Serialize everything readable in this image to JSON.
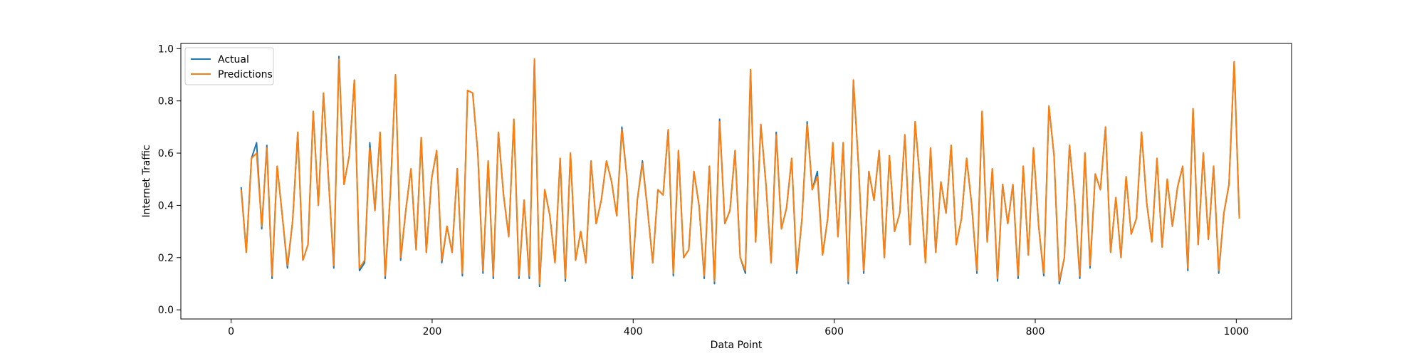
{
  "chart_data": {
    "type": "line",
    "title": "",
    "xlabel": "Data Point",
    "ylabel": "Internet Traffic",
    "xlim": [
      -50,
      1055
    ],
    "ylim": [
      -0.035,
      1.02
    ],
    "xticks": [
      0,
      200,
      400,
      600,
      800,
      1000
    ],
    "xtick_labels": [
      "0",
      "200",
      "400",
      "600",
      "800",
      "1000"
    ],
    "yticks": [
      0.0,
      0.2,
      0.4,
      0.6,
      0.8,
      1.0
    ],
    "ytick_labels": [
      "0.0",
      "0.2",
      "0.4",
      "0.6",
      "0.8",
      "1.0"
    ],
    "grid": false,
    "legend_position": "top-left",
    "x_range": [
      10,
      1003
    ],
    "note_series_values": "Dense series (~990 points); values sampled every 10 data points starting at x=10, estimated from the plot. Predictions track Actual nearly exactly.",
    "series": [
      {
        "name": "Actual",
        "color": "#1f77b4",
        "values": [
          0.47,
          0.22,
          0.58,
          0.64,
          0.31,
          0.63,
          0.12,
          0.55,
          0.36,
          0.16,
          0.34,
          0.68,
          0.19,
          0.25,
          0.76,
          0.4,
          0.83,
          0.49,
          0.16,
          0.97,
          0.48,
          0.59,
          0.88,
          0.15,
          0.18,
          0.64,
          0.38,
          0.68,
          0.12,
          0.45,
          0.9,
          0.19,
          0.38,
          0.54,
          0.23,
          0.66,
          0.22,
          0.5,
          0.61,
          0.18,
          0.32,
          0.22,
          0.54,
          0.13,
          0.84,
          0.83,
          0.6,
          0.14,
          0.57,
          0.12,
          0.68,
          0.44,
          0.28,
          0.73,
          0.12,
          0.42,
          0.12,
          0.96,
          0.09,
          0.46,
          0.36,
          0.18,
          0.58,
          0.11,
          0.6,
          0.19,
          0.3,
          0.18,
          0.57,
          0.33,
          0.42,
          0.57,
          0.49,
          0.36,
          0.7,
          0.5,
          0.12,
          0.42,
          0.57,
          0.38,
          0.18,
          0.46,
          0.44,
          0.69,
          0.13,
          0.61,
          0.2,
          0.23,
          0.53,
          0.4,
          0.12,
          0.55,
          0.1,
          0.73,
          0.33,
          0.38,
          0.61,
          0.2,
          0.14,
          0.92,
          0.26,
          0.71,
          0.48,
          0.18,
          0.68,
          0.31,
          0.39,
          0.58,
          0.14,
          0.35,
          0.72,
          0.46,
          0.53,
          0.21,
          0.35,
          0.64,
          0.28,
          0.64,
          0.1,
          0.88,
          0.55,
          0.14,
          0.53,
          0.42,
          0.61,
          0.2,
          0.59,
          0.3,
          0.37,
          0.67,
          0.25,
          0.72,
          0.48,
          0.18,
          0.62,
          0.22,
          0.49,
          0.37,
          0.63,
          0.25,
          0.35,
          0.58,
          0.4,
          0.14,
          0.76,
          0.26,
          0.54,
          0.11,
          0.48,
          0.33,
          0.48,
          0.12,
          0.55,
          0.21,
          0.62,
          0.32,
          0.13,
          0.78,
          0.59,
          0.1,
          0.2,
          0.63,
          0.42,
          0.12,
          0.6,
          0.16,
          0.52,
          0.46,
          0.7,
          0.22,
          0.43,
          0.2,
          0.51,
          0.29,
          0.35,
          0.68,
          0.41,
          0.26,
          0.58,
          0.24,
          0.5,
          0.32,
          0.47,
          0.55,
          0.15,
          0.77,
          0.25,
          0.6,
          0.27,
          0.55,
          0.14,
          0.37,
          0.48,
          0.95,
          0.35
        ]
      },
      {
        "name": "Predictions",
        "color": "#ff7f0e",
        "values": [
          0.46,
          0.22,
          0.58,
          0.6,
          0.32,
          0.62,
          0.13,
          0.55,
          0.36,
          0.17,
          0.34,
          0.68,
          0.19,
          0.25,
          0.76,
          0.4,
          0.83,
          0.49,
          0.17,
          0.96,
          0.48,
          0.59,
          0.88,
          0.16,
          0.19,
          0.62,
          0.38,
          0.68,
          0.13,
          0.45,
          0.9,
          0.2,
          0.38,
          0.54,
          0.23,
          0.66,
          0.22,
          0.5,
          0.61,
          0.19,
          0.32,
          0.22,
          0.54,
          0.14,
          0.84,
          0.83,
          0.6,
          0.15,
          0.57,
          0.13,
          0.68,
          0.44,
          0.28,
          0.73,
          0.13,
          0.42,
          0.13,
          0.96,
          0.1,
          0.46,
          0.36,
          0.18,
          0.58,
          0.12,
          0.6,
          0.19,
          0.3,
          0.18,
          0.57,
          0.33,
          0.42,
          0.57,
          0.49,
          0.36,
          0.69,
          0.5,
          0.13,
          0.42,
          0.56,
          0.38,
          0.18,
          0.46,
          0.44,
          0.69,
          0.14,
          0.61,
          0.2,
          0.23,
          0.53,
          0.4,
          0.13,
          0.55,
          0.11,
          0.72,
          0.33,
          0.38,
          0.61,
          0.2,
          0.15,
          0.92,
          0.26,
          0.71,
          0.48,
          0.18,
          0.67,
          0.31,
          0.39,
          0.58,
          0.15,
          0.35,
          0.71,
          0.46,
          0.51,
          0.21,
          0.35,
          0.64,
          0.28,
          0.64,
          0.11,
          0.88,
          0.55,
          0.15,
          0.53,
          0.42,
          0.61,
          0.2,
          0.59,
          0.3,
          0.37,
          0.67,
          0.25,
          0.72,
          0.48,
          0.18,
          0.62,
          0.22,
          0.49,
          0.37,
          0.63,
          0.25,
          0.35,
          0.58,
          0.4,
          0.15,
          0.76,
          0.26,
          0.54,
          0.12,
          0.48,
          0.33,
          0.48,
          0.13,
          0.55,
          0.21,
          0.62,
          0.32,
          0.14,
          0.78,
          0.59,
          0.11,
          0.2,
          0.63,
          0.42,
          0.13,
          0.6,
          0.17,
          0.52,
          0.46,
          0.7,
          0.22,
          0.43,
          0.2,
          0.51,
          0.29,
          0.35,
          0.68,
          0.41,
          0.26,
          0.58,
          0.24,
          0.5,
          0.32,
          0.47,
          0.55,
          0.16,
          0.77,
          0.25,
          0.6,
          0.27,
          0.55,
          0.15,
          0.37,
          0.48,
          0.95,
          0.35
        ]
      }
    ]
  }
}
